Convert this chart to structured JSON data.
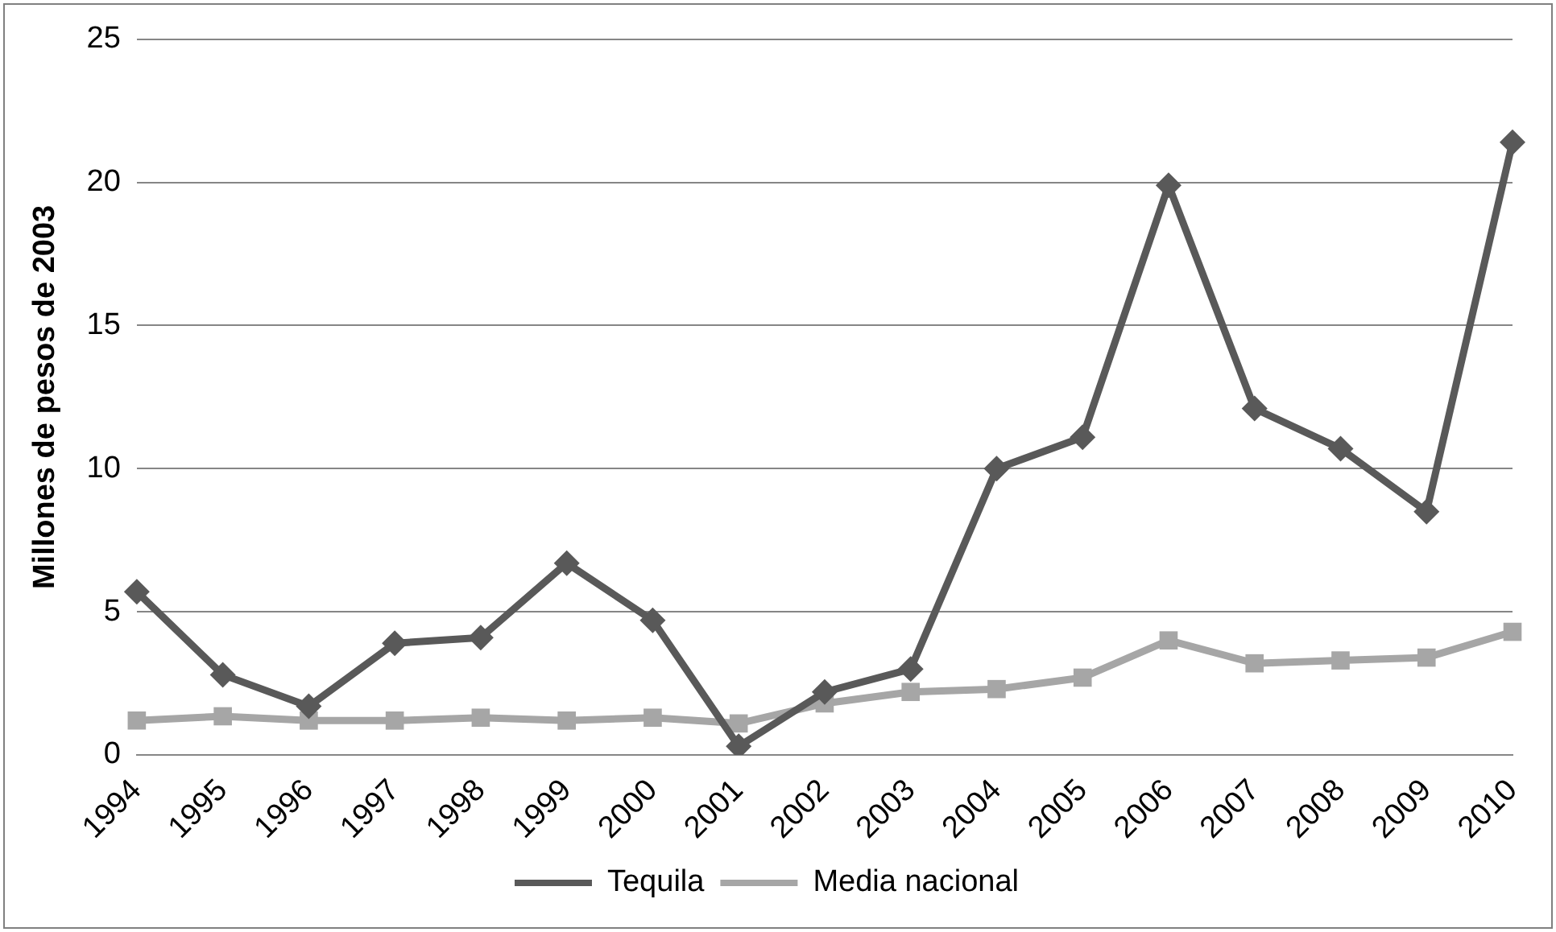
{
  "chart_data": {
    "type": "line",
    "ylabel": "Millones de pesos de 2003",
    "categories": [
      "1994",
      "1995",
      "1996",
      "1997",
      "1998",
      "1999",
      "2000",
      "2001",
      "2002",
      "2003",
      "2004",
      "2005",
      "2006",
      "2007",
      "2008",
      "2009",
      "2010"
    ],
    "series": [
      {
        "name": "Tequila",
        "color": "#595959",
        "marker": "diamond",
        "values": [
          5.7,
          2.8,
          1.7,
          3.9,
          4.1,
          6.7,
          4.7,
          0.3,
          2.2,
          3.0,
          10.0,
          11.1,
          19.9,
          12.1,
          10.7,
          8.5,
          21.4
        ]
      },
      {
        "name": "Media nacional",
        "color": "#a6a6a6",
        "marker": "square",
        "values": [
          1.2,
          1.35,
          1.2,
          1.2,
          1.3,
          1.2,
          1.3,
          1.1,
          1.8,
          2.2,
          2.3,
          2.7,
          4.0,
          3.2,
          3.3,
          3.4,
          4.3
        ]
      }
    ],
    "ylim": [
      0,
      25
    ],
    "yticks": [
      0,
      5,
      10,
      15,
      20,
      25
    ],
    "grid": "y",
    "legend": "bottom",
    "line_style": "solid"
  }
}
